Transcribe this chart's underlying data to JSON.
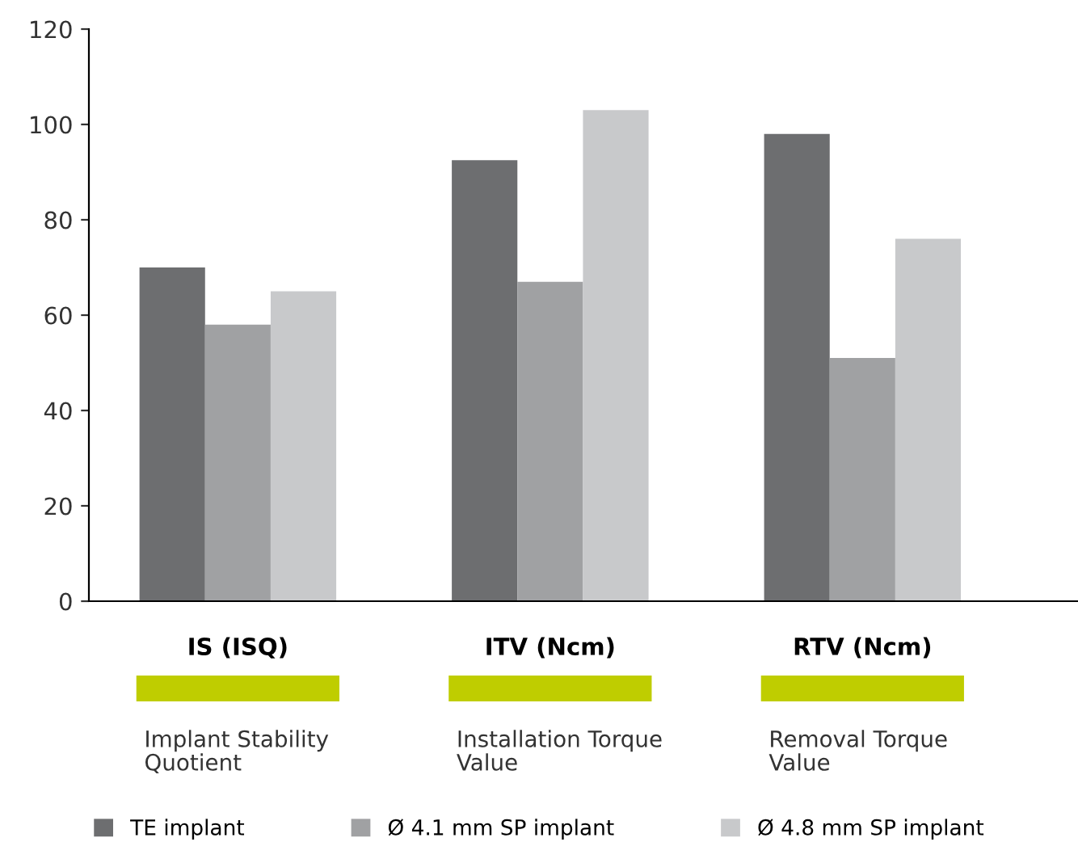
{
  "chart_data": {
    "type": "bar",
    "categories": [
      "IS (ISQ)",
      "ITV (Ncm)",
      "RTV (Ncm)"
    ],
    "series": [
      {
        "name": "TE implant",
        "color": "#6d6e70",
        "values": [
          70,
          92.5,
          98
        ]
      },
      {
        "name": "Ø 4.1 mm SP implant",
        "color": "#a0a1a3",
        "values": [
          58,
          67,
          51
        ]
      },
      {
        "name": "Ø 4.8 mm SP implant",
        "color": "#c8c9cb",
        "values": [
          65,
          103,
          76
        ]
      }
    ],
    "ylim": [
      0,
      120
    ],
    "yticks": [
      0,
      20,
      40,
      60,
      80,
      100,
      120
    ],
    "annotations": [
      "Implant Stability\nQuotient",
      "Installation Torque\nValue",
      "Removal Torque\nValue"
    ],
    "legend": "bottom",
    "grid": false
  }
}
